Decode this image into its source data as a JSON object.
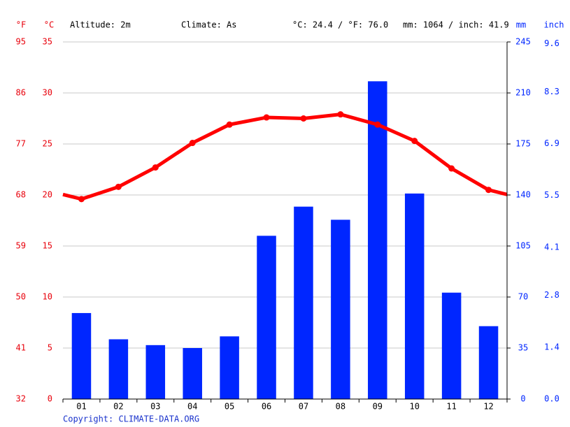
{
  "chart_data": {
    "type": "bar",
    "header": {
      "altitude": "Altitude: 2m",
      "climate": "Climate: As",
      "temperature": "°C: 24.4 / °F: 76.0",
      "precipitation": "mm: 1064 / inch: 41.9"
    },
    "units": {
      "f": "°F",
      "c": "°C",
      "mm": "mm",
      "inch": "inch"
    },
    "categories": [
      "01",
      "02",
      "03",
      "04",
      "05",
      "06",
      "07",
      "08",
      "09",
      "10",
      "11",
      "12"
    ],
    "series": [
      {
        "type": "bar",
        "axis": "y2",
        "color": "#0026ff",
        "values": [
          59,
          41,
          37,
          35,
          43,
          112,
          132,
          123,
          218,
          141,
          73,
          50
        ]
      },
      {
        "type": "line",
        "axis": "y",
        "color": "#ff0000",
        "values": [
          19.6,
          20.8,
          22.7,
          25.1,
          26.9,
          27.6,
          27.5,
          27.9,
          26.9,
          25.3,
          22.6,
          20.5
        ]
      }
    ],
    "ylim": [
      0,
      35
    ],
    "yticks": [
      0,
      5,
      10,
      15,
      20,
      25,
      30,
      35
    ],
    "fticks": [
      32,
      41,
      50,
      59,
      68,
      77,
      86,
      95
    ],
    "y2lim": [
      0,
      245
    ],
    "y2ticks": [
      0,
      35,
      70,
      105,
      140,
      175,
      210,
      245
    ],
    "inchticks": [
      {
        "value": 0,
        "label": "0.0"
      },
      1.4,
      2.8,
      4.1,
      5.5,
      6.9,
      8.3,
      9.6
    ],
    "grid": true,
    "copyright": "Copyright: CLIMATE-DATA.ORG"
  }
}
